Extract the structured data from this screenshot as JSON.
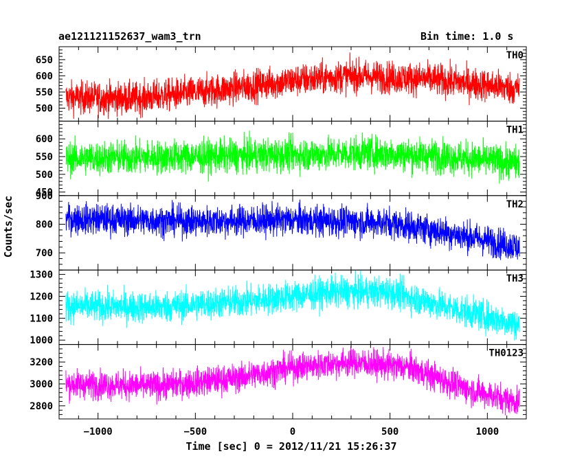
{
  "header": {
    "title": "ae121121152637_wam3_trn",
    "bin_time": "Bin time: 1.0 s"
  },
  "chart_data": {
    "type": "line",
    "title": "ae121121152637_wam3_trn",
    "xlabel": "Time [sec] 0 = 2012/11/21 15:26:37",
    "ylabel": "Counts/sec",
    "xlim": [
      -1200,
      1200
    ],
    "x_ticks": [
      -1000,
      -500,
      0,
      500,
      1000
    ],
    "x_tick_labels": [
      "−1000",
      "−500",
      "0",
      "500",
      "1000"
    ],
    "data_range": [
      -1165,
      1165
    ],
    "grid": false,
    "panels": [
      {
        "name": "TH0",
        "color": "#ff0000",
        "ylim": [
          460,
          690
        ],
        "y_ticks": [
          500,
          550,
          600,
          650
        ],
        "y_tick_labels": [
          "500",
          "550",
          "600",
          "650"
        ],
        "trend": {
          "x": [
            -1165,
            -800,
            -400,
            0,
            300,
            700,
            1165
          ],
          "y": [
            533,
            530,
            555,
            585,
            600,
            590,
            560
          ]
        },
        "amplitude": 42
      },
      {
        "name": "TH1",
        "color": "#00ff00",
        "ylim": [
          440,
          650
        ],
        "y_ticks": [
          450,
          500,
          550,
          600
        ],
        "y_tick_labels": [
          "450",
          "500",
          "550",
          "600"
        ],
        "trend": {
          "x": [
            -1165,
            -500,
            0,
            400,
            800,
            1165
          ],
          "y": [
            545,
            550,
            555,
            560,
            550,
            530
          ]
        },
        "amplitude": 40
      },
      {
        "name": "TH2",
        "color": "#0000ff",
        "ylim": [
          640,
          900
        ],
        "y_ticks": [
          700,
          800,
          900
        ],
        "y_tick_labels": [
          "700",
          "800",
          "900"
        ],
        "trend": {
          "x": [
            -1165,
            -500,
            0,
            500,
            800,
            1165
          ],
          "y": [
            820,
            810,
            815,
            805,
            770,
            720
          ]
        },
        "amplitude": 45
      },
      {
        "name": "TH3",
        "color": "#00ffff",
        "ylim": [
          980,
          1320
        ],
        "y_ticks": [
          1000,
          1100,
          1200,
          1300
        ],
        "y_tick_labels": [
          "1000",
          "1100",
          "1200",
          "1300"
        ],
        "trend": {
          "x": [
            -1165,
            -700,
            -200,
            200,
            500,
            800,
            1165
          ],
          "y": [
            1155,
            1150,
            1180,
            1220,
            1220,
            1150,
            1070
          ]
        },
        "amplitude": 60
      },
      {
        "name": "TH0123",
        "color": "#ff00ff",
        "ylim": [
          2680,
          3360
        ],
        "y_ticks": [
          2800,
          3000,
          3200
        ],
        "y_tick_labels": [
          "2800",
          "3000",
          "3200"
        ],
        "trend": {
          "x": [
            -1165,
            -700,
            -300,
            0,
            300,
            600,
            900,
            1165
          ],
          "y": [
            3000,
            2980,
            3050,
            3150,
            3200,
            3150,
            2950,
            2830
          ]
        },
        "amplitude": 110
      }
    ]
  }
}
